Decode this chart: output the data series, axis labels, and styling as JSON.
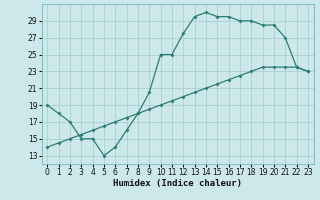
{
  "background_color": "#cce8ea",
  "line_color": "#2d7d72",
  "grid_color": "#aacfd4",
  "upper_x": [
    0,
    1,
    2,
    3,
    4,
    5,
    6,
    7,
    8,
    9,
    10,
    11,
    12,
    13,
    14,
    15,
    16,
    17,
    18,
    19,
    20,
    21,
    22,
    23
  ],
  "upper_y": [
    19,
    18,
    17,
    15,
    15,
    13,
    14,
    16,
    18,
    20.5,
    25,
    25,
    27.5,
    29.5,
    30,
    29.5,
    29.5,
    29,
    29,
    28.5,
    28.5,
    27,
    23.5,
    23
  ],
  "lower_x": [
    0,
    1,
    2,
    3,
    4,
    5,
    6,
    7,
    8,
    9,
    10,
    11,
    12,
    13,
    14,
    15,
    16,
    17,
    18,
    19,
    20,
    21,
    22,
    23
  ],
  "lower_y": [
    14,
    14.5,
    15,
    15.5,
    16,
    16.5,
    17,
    17.5,
    18,
    18.5,
    19,
    19.5,
    20,
    20.5,
    21,
    21.5,
    22,
    22.5,
    23,
    23.5,
    23.5,
    23.5,
    23.5,
    23
  ],
  "xlabel": "Humidex (Indice chaleur)",
  "ylim": [
    12,
    31
  ],
  "xlim": [
    -0.5,
    23.5
  ],
  "yticks": [
    13,
    15,
    17,
    19,
    21,
    23,
    25,
    27,
    29
  ],
  "xticks": [
    0,
    1,
    2,
    3,
    4,
    5,
    6,
    7,
    8,
    9,
    10,
    11,
    12,
    13,
    14,
    15,
    16,
    17,
    18,
    19,
    20,
    21,
    22,
    23
  ],
  "tick_fontsize": 5.5,
  "xlabel_fontsize": 6.5
}
